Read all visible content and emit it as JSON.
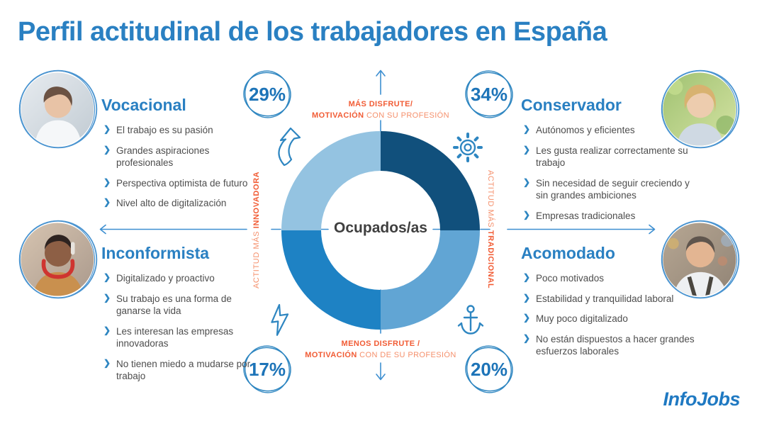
{
  "title": "Perfil actitudinal de los trabajadores en España",
  "brand": "InfoJobs",
  "center_label": "Ocupados/as",
  "axis": {
    "top_line1": "MÁS DISFRUTE/",
    "top_line2_bold": "MOTIVACIÓN",
    "top_line2_rest": " CON SU PROFESIÓN",
    "bottom_line1": "MENOS DISFRUTE /",
    "bottom_line2_bold": "MOTIVACIÓN",
    "bottom_line2_rest": " CON DE SU PROFESIÓN",
    "left_regular": "ACTITUD MÁS ",
    "left_bold": "INNOVADORA",
    "right_regular": "ACTITUD MÁS ",
    "right_bold": "TRADICIONAL"
  },
  "profiles": {
    "vocacional": {
      "name": "Vocacional",
      "percent": "29%",
      "photo": "woman-in-white-coat-looking-down",
      "items": [
        "El trabajo es su pasión",
        "Grandes aspiraciones profesionales",
        "Perspectiva optimista de futuro",
        "Nivel alto de digitalización"
      ]
    },
    "conservador": {
      "name": "Conservador",
      "percent": "34%",
      "photo": "blonde-woman-looking-up-outdoors",
      "items": [
        "Autónomos y eficientes",
        "Les gusta realizar correctamente su trabajo",
        "Sin necesidad de seguir creciendo y sin grandes ambiciones",
        "Empresas tradicionales"
      ]
    },
    "inconformista": {
      "name": "Inconformista",
      "percent": "17%",
      "photo": "man-with-red-headphones-on-phone",
      "items": [
        "Digitalizado y proactivo",
        "Su trabajo es una forma de ganarse la vida",
        "Les interesan las empresas innovadoras",
        "No tienen miedo a mudarse por trabajo"
      ]
    },
    "acomodado": {
      "name": "Acomodado",
      "percent": "20%",
      "photo": "man-in-apron-at-grocery-store",
      "items": [
        "Poco motivados",
        "Estabilidad y tranquilidad laboral",
        "Muy poco digitalizado",
        "No están dispuestos a hacer grandes esfuerzos laborales"
      ]
    }
  },
  "colors": {
    "title_blue": "#2a80c2",
    "accent_blue": "#2e86c1",
    "orange_bold": "#f15c35",
    "orange_light": "#f5906c",
    "quad_top_left": "#94c3e1",
    "quad_top_right": "#11507c",
    "quad_bottom_left": "#1e82c4",
    "quad_bottom_right": "#61a5d4",
    "text_gray": "#4d4d4d"
  },
  "chart_data": {
    "type": "pie",
    "title": "Perfil actitudinal de los trabajadores en España",
    "center_label": "Ocupados/as",
    "categories": [
      "Vocacional",
      "Conservador",
      "Inconformista",
      "Acomodado"
    ],
    "values": [
      29,
      34,
      17,
      20
    ],
    "legend_position": "quadrant-corners",
    "note": "donut drawn as four equal quadrants of a 2x2 attitude matrix; percentages shown in hand-drawn circles",
    "axes": {
      "vertical_top": "Más disfrute/motivación con su profesión",
      "vertical_bottom": "Menos disfrute / motivación con de su profesión",
      "horizontal_left": "Actitud más innovadora",
      "horizontal_right": "Actitud más tradicional"
    }
  }
}
